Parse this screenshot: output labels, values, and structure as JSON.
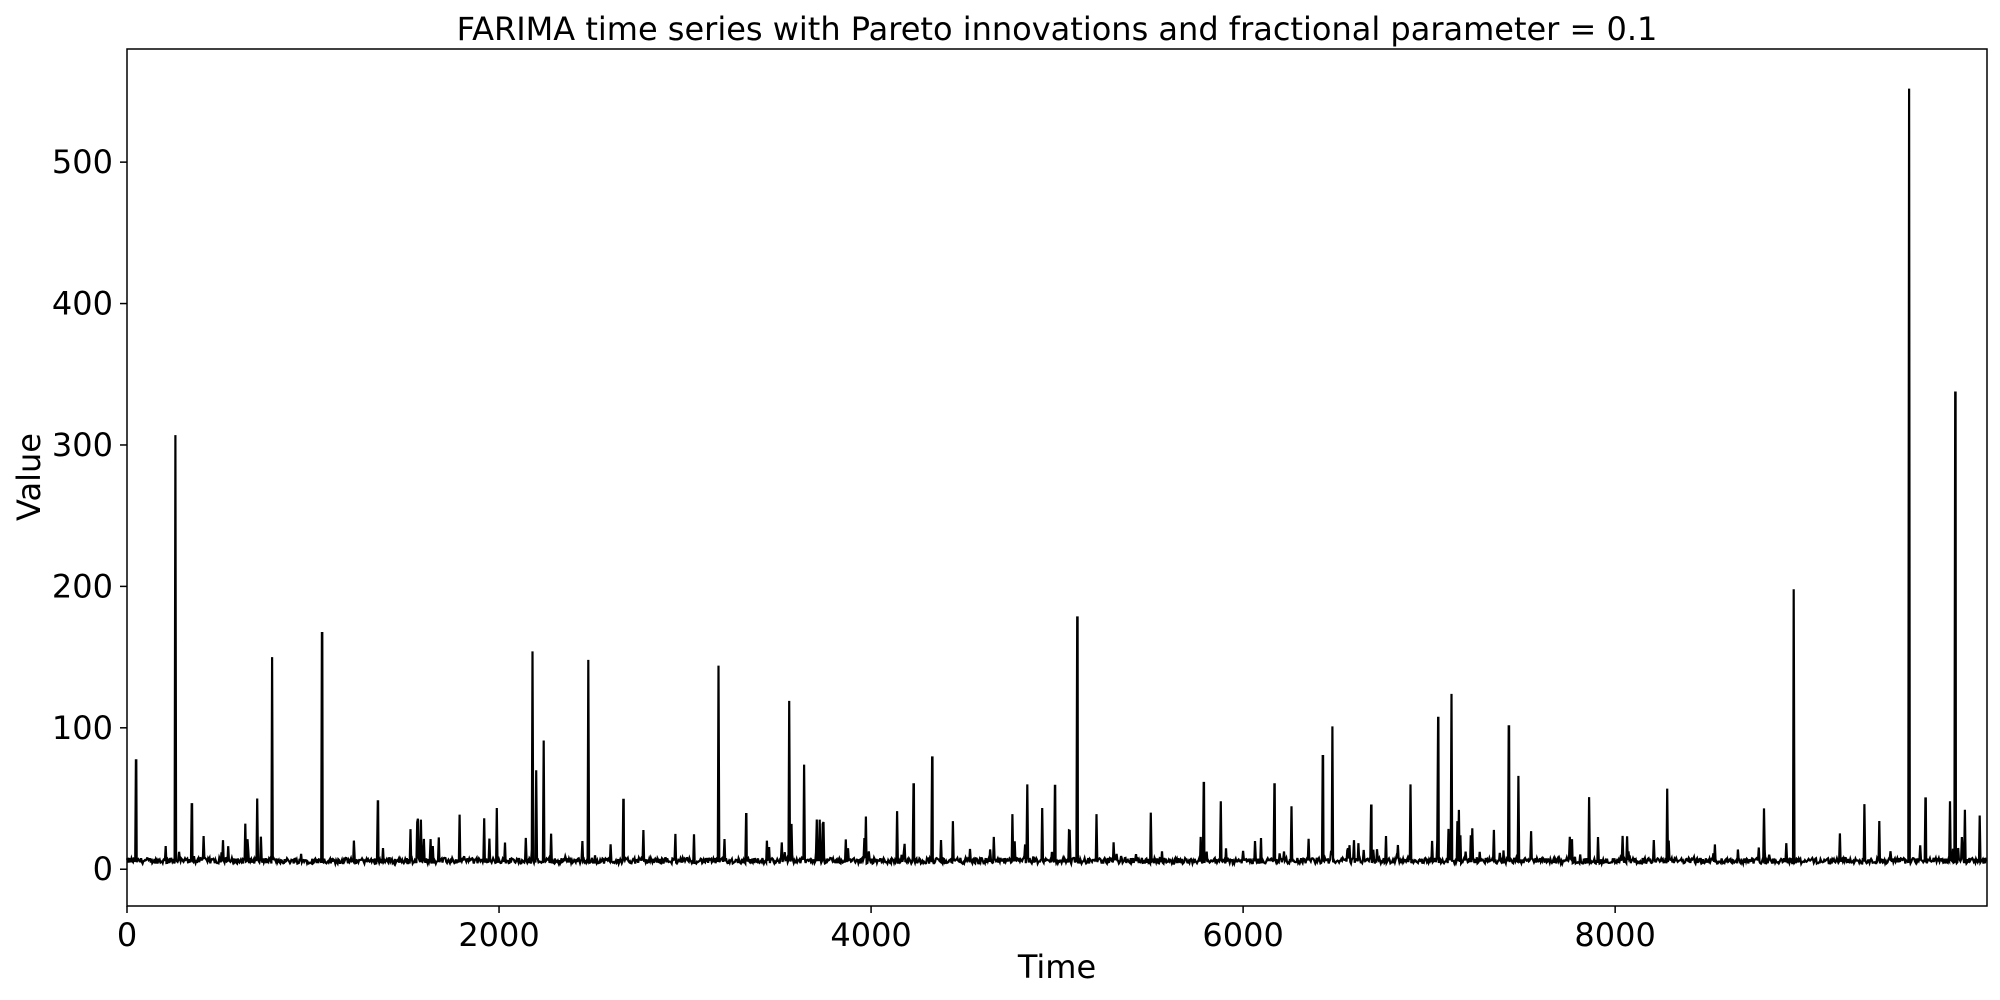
{
  "chart_data": {
    "type": "line",
    "title": "FARIMA time series with Pareto innovations and fractional parameter = 0.1",
    "xlabel": "Time",
    "ylabel": "Value",
    "xlim": [
      0,
      9999
    ],
    "ylim": [
      -26,
      580
    ],
    "xticks": [
      0,
      2000,
      4000,
      6000,
      8000
    ],
    "xtick_labels": [
      "0",
      "2000",
      "4000",
      "6000",
      "8000"
    ],
    "yticks": [
      0,
      100,
      200,
      300,
      400,
      500
    ],
    "ytick_labels": [
      "0",
      "100",
      "200",
      "300",
      "400",
      "500"
    ],
    "grid": false,
    "series": [
      {
        "name": "",
        "color": "#000000",
        "baseline": 6,
        "spikes": [
          [
            50,
            77
          ],
          [
            260,
            307
          ],
          [
            350,
            46
          ],
          [
            700,
            50
          ],
          [
            780,
            150
          ],
          [
            1050,
            167
          ],
          [
            1350,
            48
          ],
          [
            1580,
            35
          ],
          [
            1920,
            36
          ],
          [
            2180,
            154
          ],
          [
            2200,
            70
          ],
          [
            2240,
            91
          ],
          [
            2480,
            148
          ],
          [
            2670,
            49
          ],
          [
            3180,
            144
          ],
          [
            3330,
            39
          ],
          [
            3560,
            119
          ],
          [
            3640,
            74
          ],
          [
            3740,
            32
          ],
          [
            4140,
            41
          ],
          [
            4230,
            60
          ],
          [
            4330,
            79
          ],
          [
            4440,
            34
          ],
          [
            4760,
            39
          ],
          [
            4840,
            60
          ],
          [
            4990,
            59
          ],
          [
            5110,
            178
          ],
          [
            5790,
            61
          ],
          [
            5880,
            48
          ],
          [
            6170,
            60
          ],
          [
            6430,
            80
          ],
          [
            6480,
            101
          ],
          [
            6690,
            45
          ],
          [
            6900,
            60
          ],
          [
            7050,
            107
          ],
          [
            7120,
            124
          ],
          [
            7430,
            101
          ],
          [
            7480,
            66
          ],
          [
            7860,
            51
          ],
          [
            8280,
            57
          ],
          [
            8800,
            43
          ],
          [
            8960,
            198
          ],
          [
            9340,
            46
          ],
          [
            9580,
            552
          ],
          [
            9670,
            50
          ],
          [
            9800,
            48
          ],
          [
            9830,
            337
          ],
          [
            9880,
            42
          ],
          [
            9960,
            38
          ]
        ]
      }
    ]
  }
}
